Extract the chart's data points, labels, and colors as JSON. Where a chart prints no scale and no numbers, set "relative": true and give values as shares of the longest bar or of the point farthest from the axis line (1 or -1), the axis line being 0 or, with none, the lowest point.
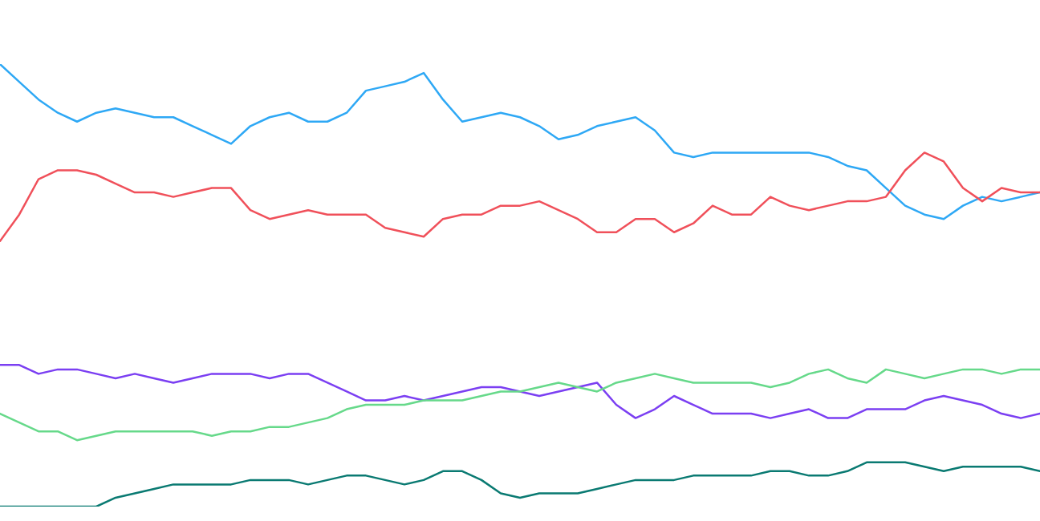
{
  "chart_data": {
    "type": "line",
    "relative": true,
    "categories": [
      null,
      null,
      null,
      null,
      null,
      null,
      null,
      null,
      null,
      null,
      null,
      null,
      null,
      null,
      null,
      null,
      null,
      null,
      null,
      null,
      null,
      null,
      null,
      null,
      null,
      null,
      null,
      null,
      null,
      null,
      null,
      null,
      null,
      null,
      null,
      null,
      null,
      null,
      null,
      null,
      null,
      null,
      null,
      null,
      null,
      null,
      null,
      null,
      null,
      null,
      null,
      null,
      null,
      null,
      null
    ],
    "series": [
      {
        "color": "#2ea8f5",
        "values": [
          1.0,
          0.96,
          0.92,
          0.89,
          0.87,
          0.89,
          0.9,
          0.89,
          0.88,
          0.88,
          0.86,
          0.84,
          0.82,
          0.86,
          0.88,
          0.89,
          0.87,
          0.87,
          0.89,
          0.94,
          0.95,
          0.96,
          0.98,
          0.92,
          0.87,
          0.88,
          0.89,
          0.88,
          0.86,
          0.83,
          0.84,
          0.86,
          0.87,
          0.88,
          0.85,
          0.8,
          0.79,
          0.8,
          0.8,
          0.8,
          0.8,
          0.8,
          0.8,
          0.79,
          0.77,
          0.76,
          0.72,
          0.68,
          0.66,
          0.65,
          0.68,
          0.7,
          0.69,
          0.7,
          0.71
        ]
      },
      {
        "color": "#f0505a",
        "values": [
          0.6,
          0.66,
          0.74,
          0.76,
          0.76,
          0.75,
          0.73,
          0.71,
          0.71,
          0.7,
          0.71,
          0.72,
          0.72,
          0.67,
          0.65,
          0.66,
          0.67,
          0.66,
          0.66,
          0.66,
          0.63,
          0.62,
          0.61,
          0.65,
          0.66,
          0.66,
          0.68,
          0.68,
          0.69,
          0.67,
          0.65,
          0.62,
          0.62,
          0.65,
          0.65,
          0.62,
          0.64,
          0.68,
          0.66,
          0.66,
          0.7,
          0.68,
          0.67,
          0.68,
          0.69,
          0.69,
          0.7,
          0.76,
          0.8,
          0.78,
          0.72,
          0.69,
          0.72,
          0.71,
          0.71
        ]
      },
      {
        "color": "#7b3ff2",
        "values": [
          0.32,
          0.32,
          0.3,
          0.31,
          0.31,
          0.3,
          0.29,
          0.3,
          0.29,
          0.28,
          0.29,
          0.3,
          0.3,
          0.3,
          0.29,
          0.3,
          0.3,
          0.28,
          0.26,
          0.24,
          0.24,
          0.25,
          0.24,
          0.25,
          0.26,
          0.27,
          0.27,
          0.26,
          0.25,
          0.26,
          0.27,
          0.28,
          0.23,
          0.2,
          0.22,
          0.25,
          0.23,
          0.21,
          0.21,
          0.21,
          0.2,
          0.21,
          0.22,
          0.2,
          0.2,
          0.22,
          0.22,
          0.22,
          0.24,
          0.25,
          0.24,
          0.23,
          0.21,
          0.2,
          0.21
        ]
      },
      {
        "color": "#66d98a",
        "values": [
          0.21,
          0.19,
          0.17,
          0.17,
          0.15,
          0.16,
          0.17,
          0.17,
          0.17,
          0.17,
          0.17,
          0.16,
          0.17,
          0.17,
          0.18,
          0.18,
          0.19,
          0.2,
          0.22,
          0.23,
          0.23,
          0.23,
          0.24,
          0.24,
          0.24,
          0.25,
          0.26,
          0.26,
          0.27,
          0.28,
          0.27,
          0.26,
          0.28,
          0.29,
          0.3,
          0.29,
          0.28,
          0.28,
          0.28,
          0.28,
          0.27,
          0.28,
          0.3,
          0.31,
          0.29,
          0.28,
          0.31,
          0.3,
          0.29,
          0.3,
          0.31,
          0.31,
          0.3,
          0.31,
          0.31
        ]
      },
      {
        "color": "#0a7a72",
        "values": [
          0.0,
          0.0,
          0.0,
          0.0,
          0.0,
          0.0,
          0.02,
          0.03,
          0.04,
          0.05,
          0.05,
          0.05,
          0.05,
          0.06,
          0.06,
          0.06,
          0.05,
          0.06,
          0.07,
          0.07,
          0.06,
          0.05,
          0.06,
          0.08,
          0.08,
          0.06,
          0.03,
          0.02,
          0.03,
          0.03,
          0.03,
          0.04,
          0.05,
          0.06,
          0.06,
          0.06,
          0.07,
          0.07,
          0.07,
          0.07,
          0.08,
          0.08,
          0.07,
          0.07,
          0.08,
          0.1,
          0.1,
          0.1,
          0.09,
          0.08,
          0.09,
          0.09,
          0.09,
          0.09,
          0.08
        ]
      }
    ]
  }
}
